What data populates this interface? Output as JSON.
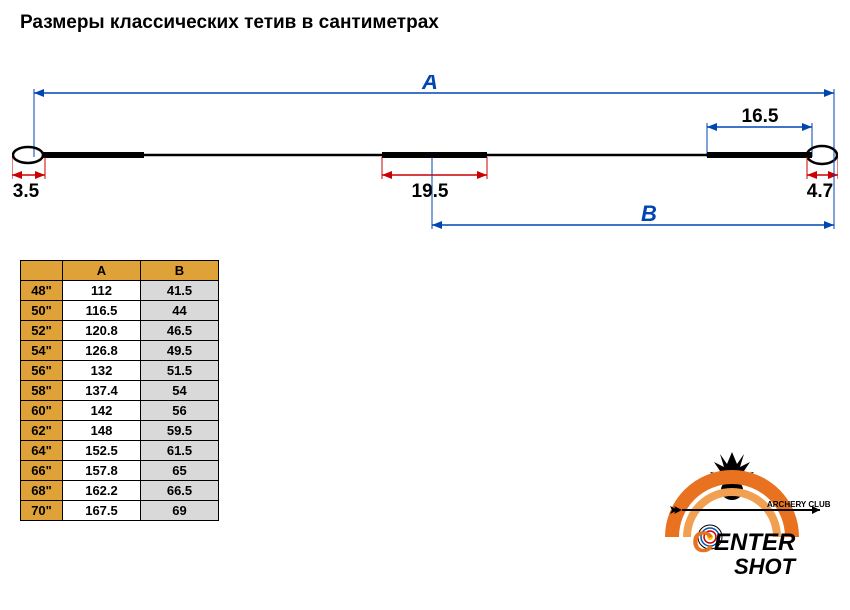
{
  "title": "Размеры классических тетив в сантиметрах",
  "diagram": {
    "label_A": "A",
    "label_B": "B",
    "dim_left_loop": "3.5",
    "dim_center_serving": "19.5",
    "dim_right_serving": "16.5",
    "dim_right_loop": "4.7",
    "string_color": "#000000",
    "dim_line_color": "#0046b3",
    "arrow_red_color": "#cc0000",
    "text_color": "#000000"
  },
  "table": {
    "columns": [
      "",
      "A",
      "B"
    ],
    "header_bg": "#dfa239",
    "shaded_bg": "#d9d9d9",
    "rows": [
      [
        "48\"",
        "112",
        "41.5"
      ],
      [
        "50\"",
        "116.5",
        "44"
      ],
      [
        "52\"",
        "120.8",
        "46.5"
      ],
      [
        "54\"",
        "126.8",
        "49.5"
      ],
      [
        "56\"",
        "132",
        "51.5"
      ],
      [
        "58\"",
        "137.4",
        "54"
      ],
      [
        "60\"",
        "142",
        "56"
      ],
      [
        "62\"",
        "148",
        "59.5"
      ],
      [
        "64\"",
        "152.5",
        "61.5"
      ],
      [
        "66\"",
        "157.8",
        "65"
      ],
      [
        "68\"",
        "162.2",
        "66.5"
      ],
      [
        "70\"",
        "167.5",
        "69"
      ]
    ]
  },
  "logo": {
    "line1": "ARCHERY CLUB",
    "line2_part1": "C",
    "line2_part2": "ENTER",
    "line3": "SHOT",
    "arc_color": "#e8721f",
    "inner_arc_color": "#f0a050",
    "text_color": "#000000"
  }
}
